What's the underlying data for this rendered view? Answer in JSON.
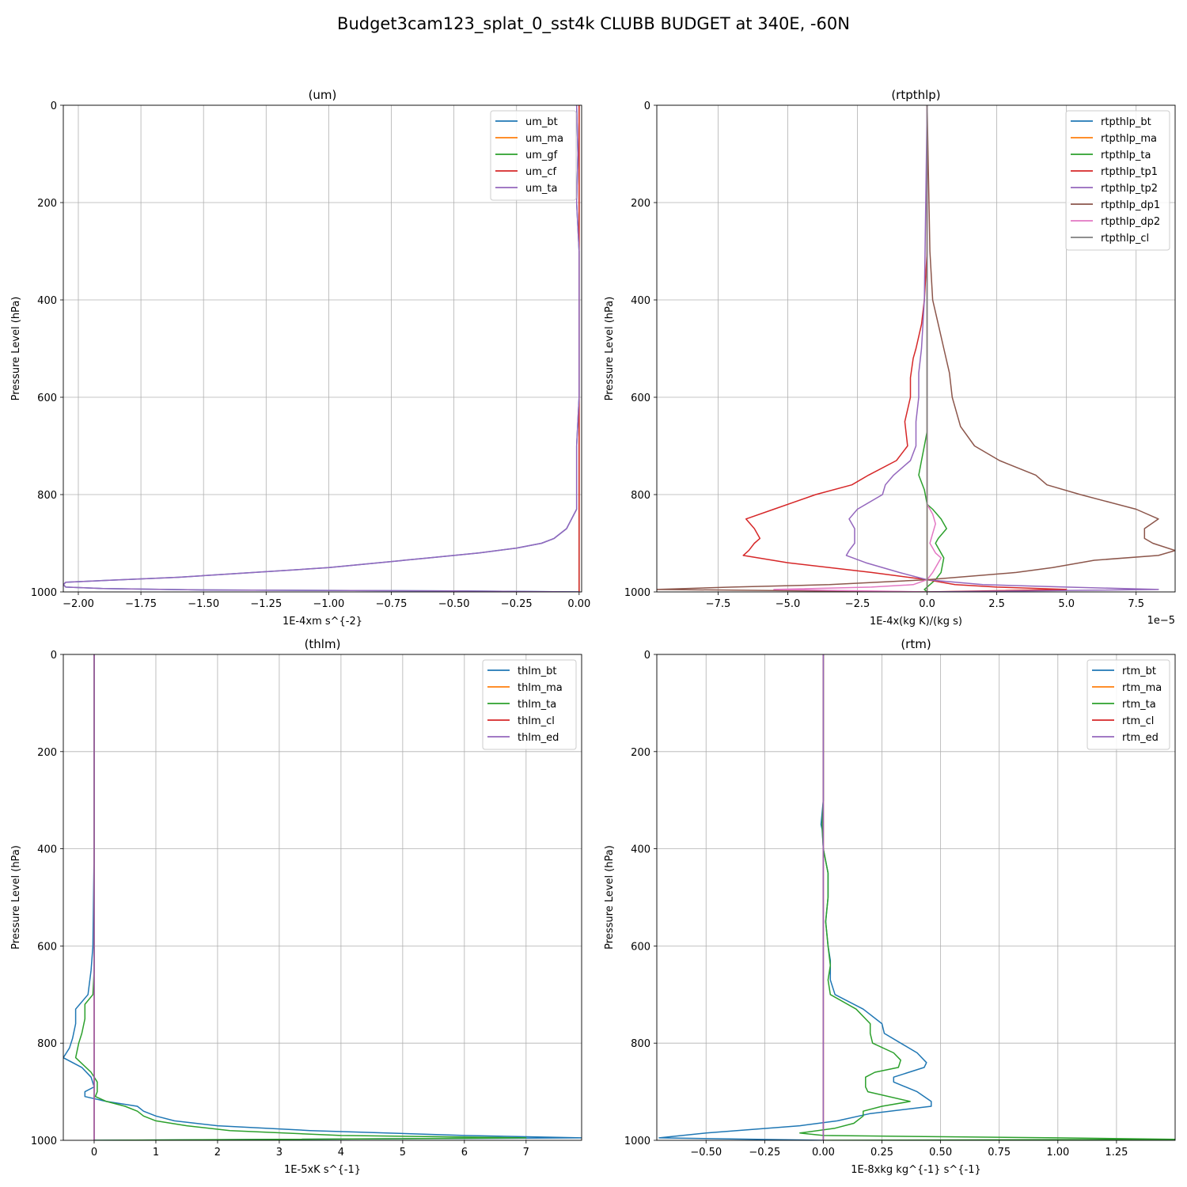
{
  "figure_title": "Budget3cam123_splat_0_sst4k CLUBB BUDGET at 340E, -60N",
  "colors": {
    "c0": "#1f77b4",
    "c1": "#ff7f0e",
    "c2": "#2ca02c",
    "c3": "#d62728",
    "c4": "#9467bd",
    "c5": "#8c564b",
    "c6": "#e377c2",
    "c7": "#7f7f7f",
    "grid": "#b0b0b0"
  },
  "chart_data": [
    {
      "type": "line",
      "title": "(um)",
      "xlabel": "1E-4xm s^{-2}",
      "ylabel": "Pressure Level (hPa)",
      "xlim": [
        -2.06,
        0.01
      ],
      "ylim": [
        1000,
        0
      ],
      "xticks": [
        -2.0,
        -1.75,
        -1.5,
        -1.25,
        -1.0,
        -0.75,
        -0.5,
        -0.25,
        0.0
      ],
      "xtick_labels": [
        "−2.00",
        "−1.75",
        "−1.50",
        "−1.25",
        "−1.00",
        "−0.75",
        "−0.50",
        "−0.25",
        "0.00"
      ],
      "yticks": [
        0,
        200,
        400,
        600,
        800,
        1000
      ],
      "ytick_labels": [
        "0",
        "200",
        "400",
        "600",
        "800",
        "1000"
      ],
      "offset_text": "",
      "grid": true,
      "legend": "upper right",
      "series": [
        {
          "name": "um_bt",
          "color": "c0",
          "p": [
            0,
            100,
            200,
            300,
            400,
            500,
            600,
            700,
            750,
            800,
            830,
            850,
            870,
            890,
            900,
            910,
            920,
            930,
            950,
            970,
            980,
            985,
            990,
            993,
            996,
            998,
            1000
          ],
          "x": [
            -0.01,
            -0.005,
            -0.01,
            0,
            0,
            0,
            0,
            -0.01,
            -0.01,
            -0.01,
            -0.01,
            -0.03,
            -0.05,
            -0.1,
            -0.15,
            -0.25,
            -0.4,
            -0.6,
            -1.0,
            -1.6,
            -2.05,
            -2.06,
            -2.05,
            -1.9,
            -1.5,
            -0.5,
            0
          ]
        },
        {
          "name": "um_ma",
          "color": "c1",
          "p": [
            0,
            1000
          ],
          "x": [
            0,
            0
          ]
        },
        {
          "name": "um_gf",
          "color": "c2",
          "p": [
            0,
            1000
          ],
          "x": [
            0,
            0
          ]
        },
        {
          "name": "um_cf",
          "color": "c3",
          "p": [
            0,
            100,
            200,
            300,
            400,
            500,
            600,
            700,
            800,
            900,
            1000
          ],
          "x": [
            0,
            0,
            0,
            0,
            0,
            0,
            0,
            0,
            0,
            0,
            0
          ]
        },
        {
          "name": "um_ta",
          "color": "c4",
          "p": [
            0,
            100,
            200,
            300,
            400,
            500,
            600,
            700,
            750,
            800,
            830,
            850,
            870,
            890,
            900,
            910,
            920,
            930,
            950,
            970,
            980,
            985,
            990,
            993,
            996,
            998,
            1000
          ],
          "x": [
            -0.01,
            -0.005,
            -0.01,
            0,
            0,
            0,
            0,
            -0.01,
            -0.01,
            -0.01,
            -0.01,
            -0.03,
            -0.05,
            -0.1,
            -0.15,
            -0.25,
            -0.4,
            -0.6,
            -1.0,
            -1.6,
            -2.05,
            -2.06,
            -2.05,
            -1.9,
            -1.5,
            -0.5,
            0
          ]
        }
      ]
    },
    {
      "type": "line",
      "title": "(rtpthlp)",
      "xlabel": "1E-4x(kg K)/(kg s)",
      "ylabel": "Pressure Level (hPa)",
      "xlim": [
        -9.7,
        8.9
      ],
      "ylim": [
        1000,
        0
      ],
      "xticks": [
        -7.5,
        -5.0,
        -2.5,
        0.0,
        2.5,
        5.0,
        7.5
      ],
      "xtick_labels": [
        "−7.5",
        "−5.0",
        "−2.5",
        "0.0",
        "2.5",
        "5.0",
        "7.5"
      ],
      "yticks": [
        0,
        200,
        400,
        600,
        800,
        1000
      ],
      "ytick_labels": [
        "0",
        "200",
        "400",
        "600",
        "800",
        "1000"
      ],
      "offset_text": "1e−5",
      "grid": true,
      "legend": "upper right",
      "series": [
        {
          "name": "rtpthlp_bt",
          "color": "c0",
          "p": [
            0,
            400,
            800,
            960,
            985,
            995,
            1000
          ],
          "x": [
            0,
            0,
            0,
            0,
            0,
            0,
            0
          ]
        },
        {
          "name": "rtpthlp_ma",
          "color": "c1",
          "p": [
            0,
            1000
          ],
          "x": [
            0,
            0
          ]
        },
        {
          "name": "rtpthlp_ta",
          "color": "c2",
          "p": [
            0,
            400,
            500,
            600,
            670,
            700,
            730,
            760,
            790,
            820,
            830,
            850,
            870,
            890,
            900,
            930,
            960,
            975,
            985,
            990,
            995,
            1000
          ],
          "x": [
            0,
            0,
            0,
            0,
            0,
            -0.1,
            -0.2,
            -0.3,
            -0.1,
            0,
            0.2,
            0.5,
            0.7,
            0.4,
            0.3,
            0.6,
            0.5,
            0.3,
            0.1,
            0,
            -0.1,
            0
          ]
        },
        {
          "name": "rtpthlp_tp1",
          "color": "c3",
          "p": [
            0,
            300,
            400,
            450,
            500,
            520,
            560,
            600,
            650,
            700,
            730,
            760,
            780,
            800,
            830,
            850,
            870,
            890,
            900,
            915,
            925,
            940,
            960,
            975,
            985,
            990,
            995,
            1000
          ],
          "x": [
            0,
            0,
            -0.1,
            -0.2,
            -0.4,
            -0.5,
            -0.6,
            -0.6,
            -0.8,
            -0.7,
            -1.1,
            -2.1,
            -2.7,
            -4.0,
            -5.5,
            -6.5,
            -6.2,
            -6.0,
            -6.2,
            -6.4,
            -6.6,
            -5.0,
            -2.0,
            0,
            1.0,
            2.5,
            5.0,
            0
          ]
        },
        {
          "name": "rtpthlp_tp2",
          "color": "c4",
          "p": [
            0,
            400,
            500,
            550,
            600,
            650,
            700,
            730,
            760,
            780,
            800,
            830,
            850,
            870,
            890,
            900,
            915,
            925,
            940,
            960,
            975,
            985,
            990,
            995,
            1000
          ],
          "x": [
            0,
            -0.1,
            -0.2,
            -0.3,
            -0.3,
            -0.4,
            -0.4,
            -0.6,
            -1.2,
            -1.5,
            -1.6,
            -2.5,
            -2.8,
            -2.6,
            -2.6,
            -2.6,
            -2.8,
            -2.9,
            -2.2,
            -1,
            0,
            2,
            5,
            8.3,
            0
          ]
        },
        {
          "name": "rtpthlp_dp1",
          "color": "c5",
          "p": [
            0,
            300,
            400,
            450,
            500,
            550,
            600,
            660,
            700,
            730,
            760,
            780,
            800,
            830,
            850,
            870,
            880,
            890,
            900,
            915,
            925,
            935,
            950,
            960,
            975,
            985,
            990,
            995,
            1000
          ],
          "x": [
            0,
            0.1,
            0.2,
            0.4,
            0.6,
            0.8,
            0.9,
            1.2,
            1.7,
            2.6,
            3.9,
            4.3,
            5.5,
            7.5,
            8.3,
            7.8,
            7.8,
            7.8,
            8.1,
            8.9,
            8.3,
            6.0,
            4.5,
            3.2,
            0,
            -3.5,
            -7.0,
            -9.7,
            0
          ]
        },
        {
          "name": "rtpthlp_dp2",
          "color": "c6",
          "p": [
            0,
            400,
            700,
            800,
            820,
            840,
            860,
            880,
            900,
            920,
            930,
            950,
            960,
            975,
            985,
            990,
            995,
            1000
          ],
          "x": [
            0,
            0,
            0,
            0,
            0,
            0.2,
            0.3,
            0.2,
            0.1,
            0.3,
            0.5,
            0.3,
            0.2,
            0,
            -0.5,
            -2,
            -5.5,
            0
          ]
        },
        {
          "name": "rtpthlp_cl",
          "color": "c7",
          "p": [
            0,
            1000
          ],
          "x": [
            0,
            0
          ]
        }
      ]
    },
    {
      "type": "line",
      "title": "(thlm)",
      "xlabel": "1E-5xK s^{-1}",
      "ylabel": "Pressure Level (hPa)",
      "xlim": [
        -0.5,
        7.9
      ],
      "ylim": [
        1000,
        0
      ],
      "xticks": [
        0,
        1,
        2,
        3,
        4,
        5,
        6,
        7
      ],
      "xtick_labels": [
        "0",
        "1",
        "2",
        "3",
        "4",
        "5",
        "6",
        "7"
      ],
      "yticks": [
        0,
        200,
        400,
        600,
        800,
        1000
      ],
      "ytick_labels": [
        "0",
        "200",
        "400",
        "600",
        "800",
        "1000"
      ],
      "offset_text": "",
      "grid": true,
      "legend": "upper right",
      "series": [
        {
          "name": "thlm_bt",
          "color": "c0",
          "p": [
            0,
            200,
            400,
            600,
            650,
            700,
            730,
            760,
            790,
            810,
            830,
            850,
            870,
            890,
            900,
            910,
            920,
            930,
            940,
            950,
            960,
            970,
            980,
            990,
            995,
            1000
          ],
          "x": [
            0,
            0,
            0,
            -0.02,
            -0.05,
            -0.1,
            -0.3,
            -0.3,
            -0.35,
            -0.4,
            -0.5,
            -0.2,
            -0.05,
            0,
            -0.15,
            -0.15,
            0.2,
            0.7,
            0.8,
            1.0,
            1.3,
            2.0,
            3.5,
            6.0,
            7.9,
            0
          ]
        },
        {
          "name": "thlm_ma",
          "color": "c1",
          "p": [
            0,
            1000
          ],
          "x": [
            0,
            0
          ]
        },
        {
          "name": "thlm_ta",
          "color": "c2",
          "p": [
            0,
            200,
            400,
            600,
            650,
            700,
            720,
            750,
            780,
            800,
            830,
            860,
            880,
            900,
            910,
            920,
            930,
            940,
            950,
            960,
            970,
            980,
            990,
            995,
            998,
            1000
          ],
          "x": [
            0,
            0,
            0,
            0,
            0,
            -0.02,
            -0.15,
            -0.15,
            -0.2,
            -0.25,
            -0.3,
            -0.05,
            0.05,
            0.05,
            0.02,
            0.2,
            0.5,
            0.7,
            0.8,
            1.0,
            1.5,
            2.2,
            4.0,
            7.0,
            3.0,
            0
          ]
        },
        {
          "name": "thlm_cl",
          "color": "c3",
          "p": [
            0,
            1000
          ],
          "x": [
            0,
            0
          ]
        },
        {
          "name": "thlm_ed",
          "color": "c4",
          "p": [
            0,
            200,
            400,
            600,
            800,
            1000
          ],
          "x": [
            0,
            0,
            0,
            0,
            0,
            0
          ]
        }
      ]
    },
    {
      "type": "line",
      "title": "(rtm)",
      "xlabel": "1E-8xkg kg^{-1} s^{-1}",
      "ylabel": "Pressure Level (hPa)",
      "xlim": [
        -0.71,
        1.5
      ],
      "ylim": [
        1000,
        0
      ],
      "xticks": [
        -0.5,
        -0.25,
        0.0,
        0.25,
        0.5,
        0.75,
        1.0,
        1.25
      ],
      "xtick_labels": [
        "−0.50",
        "−0.25",
        "0.00",
        "0.25",
        "0.50",
        "0.75",
        "1.00",
        "1.25"
      ],
      "yticks": [
        0,
        200,
        400,
        600,
        800,
        1000
      ],
      "ytick_labels": [
        "0",
        "200",
        "400",
        "600",
        "800",
        "1000"
      ],
      "offset_text": "",
      "grid": true,
      "legend": "upper right",
      "series": [
        {
          "name": "rtm_bt",
          "color": "c0",
          "p": [
            0,
            200,
            300,
            350,
            360,
            400,
            450,
            500,
            550,
            600,
            630,
            670,
            700,
            730,
            760,
            780,
            800,
            820,
            840,
            850,
            870,
            880,
            900,
            920,
            930,
            945,
            960,
            970,
            985,
            995,
            1000
          ],
          "x": [
            0,
            0,
            0,
            -0.01,
            -0.005,
            0,
            0.02,
            0.02,
            0.01,
            0.02,
            0.03,
            0.03,
            0.05,
            0.17,
            0.25,
            0.26,
            0.33,
            0.4,
            0.44,
            0.43,
            0.3,
            0.3,
            0.4,
            0.46,
            0.46,
            0.2,
            0.06,
            -0.1,
            -0.5,
            -0.7,
            0
          ]
        },
        {
          "name": "rtm_ma",
          "color": "c1",
          "p": [
            0,
            1000
          ],
          "x": [
            0,
            0
          ]
        },
        {
          "name": "rtm_ta",
          "color": "c2",
          "p": [
            0,
            200,
            300,
            350,
            400,
            450,
            500,
            550,
            600,
            640,
            670,
            700,
            730,
            760,
            780,
            800,
            820,
            835,
            850,
            860,
            870,
            880,
            890,
            900,
            920,
            930,
            940,
            950,
            965,
            975,
            985,
            990,
            995,
            998,
            1000
          ],
          "x": [
            0,
            0,
            0,
            -0.005,
            0,
            0.02,
            0.02,
            0.01,
            0.02,
            0.03,
            0.02,
            0.03,
            0.14,
            0.2,
            0.2,
            0.21,
            0.3,
            0.33,
            0.32,
            0.22,
            0.18,
            0.18,
            0.18,
            0.19,
            0.37,
            0.25,
            0.17,
            0.17,
            0.13,
            0.05,
            -0.1,
            0,
            1.0,
            1.5,
            0
          ]
        },
        {
          "name": "rtm_cl",
          "color": "c3",
          "p": [
            0,
            1000
          ],
          "x": [
            0,
            0
          ]
        },
        {
          "name": "rtm_ed",
          "color": "c4",
          "p": [
            0,
            1000
          ],
          "x": [
            0,
            0
          ]
        }
      ]
    }
  ]
}
